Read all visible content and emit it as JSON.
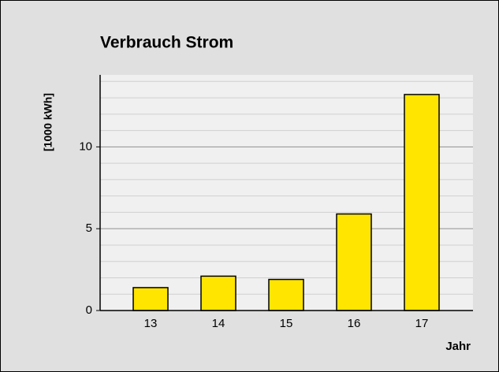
{
  "chart_data": {
    "type": "bar",
    "title": "Verbrauch Strom",
    "y_label": "[1000 kWh]",
    "x_label": "Jahr",
    "categories": [
      "13",
      "14",
      "15",
      "16",
      "17"
    ],
    "values": [
      1.4,
      2.1,
      1.9,
      5.9,
      13.2
    ],
    "color": "#ffe500",
    "ylim": [
      0,
      14.4
    ],
    "yticks": [
      0,
      5,
      10
    ],
    "minor_yticks": [
      1,
      2,
      3,
      4,
      6,
      7,
      8,
      9,
      11,
      12,
      13,
      14
    ],
    "grid": true
  }
}
